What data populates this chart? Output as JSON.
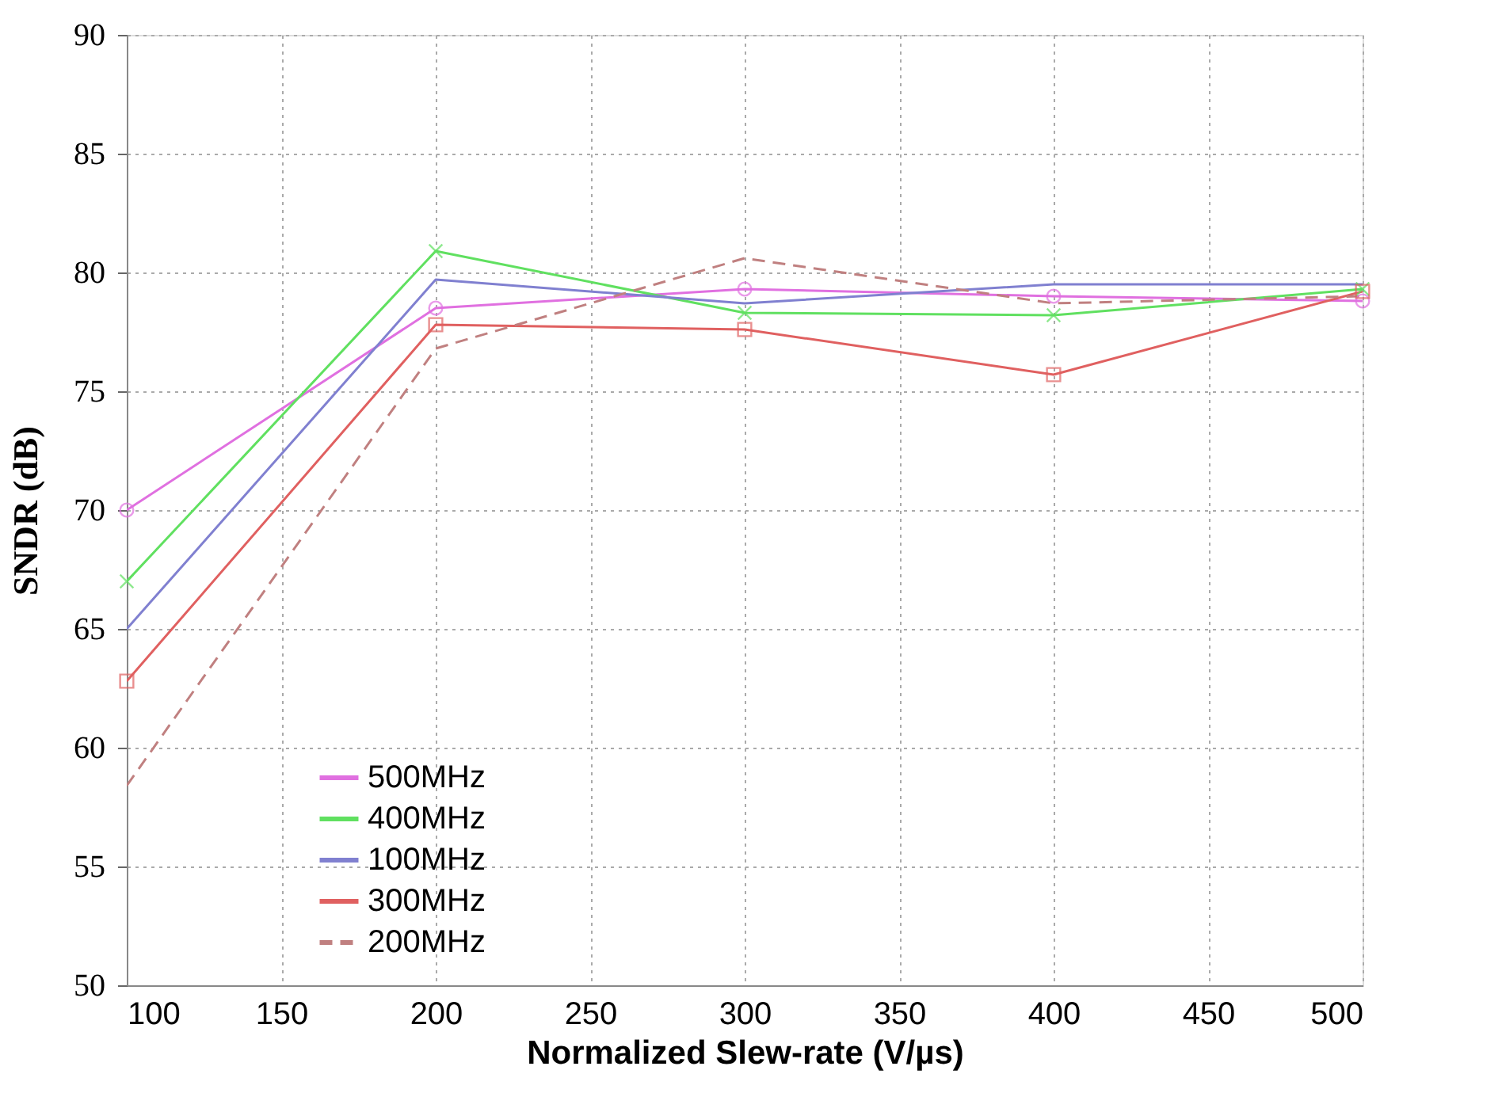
{
  "chart_data": {
    "type": "line",
    "xlabel": "Normalized Slew-rate (V/µs)",
    "ylabel": "SNDR (dB)",
    "x": [
      100,
      200,
      300,
      400,
      500
    ],
    "xlim": [
      100,
      500
    ],
    "xticks": [
      100,
      150,
      200,
      250,
      300,
      350,
      400,
      450,
      500
    ],
    "ylim": [
      50,
      90
    ],
    "yticks": [
      50,
      55,
      60,
      65,
      70,
      75,
      80,
      85,
      90
    ],
    "grid": true,
    "legend": "bottom left",
    "series": [
      {
        "name": "500MHz",
        "color": "#e070e0",
        "marker": "circle",
        "line_style": "solid",
        "values": [
          70.0,
          78.5,
          79.3,
          79.0,
          78.8
        ]
      },
      {
        "name": "400MHz",
        "color": "#60e060",
        "marker": "cross",
        "line_style": "solid",
        "values": [
          67.0,
          80.9,
          78.3,
          78.2,
          79.3
        ]
      },
      {
        "name": "100MHz",
        "color": "#8080d0",
        "marker": "none",
        "line_style": "solid",
        "values": [
          65.0,
          79.7,
          78.7,
          79.5,
          79.5
        ]
      },
      {
        "name": "300MHz",
        "color": "#e06060",
        "marker": "square",
        "line_style": "solid",
        "values": [
          62.8,
          77.8,
          77.6,
          75.7,
          79.2
        ]
      },
      {
        "name": "200MHz",
        "color": "#c08080",
        "marker": "none",
        "line_style": "dashed",
        "values": [
          58.4,
          76.8,
          80.6,
          78.7,
          79.0
        ]
      }
    ]
  }
}
